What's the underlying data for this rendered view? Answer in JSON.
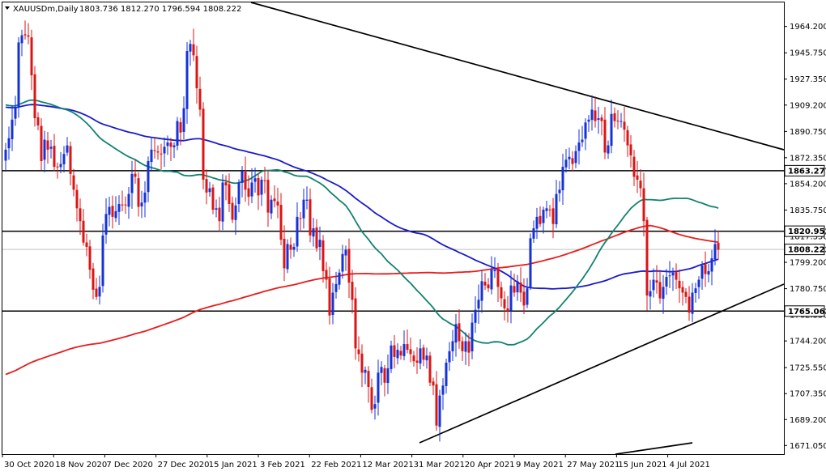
{
  "header": {
    "symbol_label": "XAUUSDm,Daily",
    "ohlc_text": "1803.736 1812.270 1796.594 1808.222",
    "open": 1803.736,
    "high": 1812.27,
    "low": 1796.594,
    "close": 1808.222
  },
  "chart_data": {
    "type": "candlestick",
    "symbol": "XAUUSDm",
    "timeframe": "Daily",
    "y_range": [
      1665,
      1981
    ],
    "y_ticks": [
      "1964.200",
      "1945.750",
      "1927.350",
      "1909.200",
      "1890.750",
      "1872.350",
      "1854.200",
      "1835.750",
      "1817.350",
      "1799.200",
      "1780.750",
      "1762.350",
      "1744.200",
      "1725.550",
      "1707.350",
      "1689.200",
      "1671.050"
    ],
    "x_ticks": [
      "30 Oct 2020",
      "18 Nov 2020",
      "7 Dec 2020",
      "27 Dec 2020",
      "15 Jan 2021",
      "3 Feb 2021",
      "22 Feb 2021",
      "12 Mar 2021",
      "31 Mar 2021",
      "20 Apr 2021",
      "9 May 2021",
      "27 May 2021",
      "15 Jun 2021",
      "4 Jul 2021"
    ],
    "horizontal_levels": [
      {
        "value": 1863.277,
        "label": "1863.277"
      },
      {
        "value": 1820.952,
        "label": "1820.952"
      },
      {
        "value": 1765.062,
        "label": "1765.062"
      }
    ],
    "current_price": {
      "value": 1808.222,
      "label": "1808.222"
    },
    "closes": [
      1878,
      1886,
      1899,
      1907,
      1953,
      1958,
      1958,
      1957,
      1930,
      1900,
      1895,
      1870,
      1885,
      1878,
      1880,
      1866,
      1866,
      1868,
      1875,
      1881,
      1861,
      1850,
      1837,
      1828,
      1813,
      1810,
      1794,
      1780,
      1775,
      1782,
      1818,
      1833,
      1838,
      1831,
      1835,
      1840,
      1839,
      1839,
      1847,
      1861,
      1859,
      1838,
      1841,
      1848,
      1870,
      1878,
      1877,
      1876,
      1875,
      1880,
      1883,
      1880,
      1881,
      1898,
      1890,
      1907,
      1947,
      1952,
      1944,
      1921,
      1906,
      1857,
      1848,
      1851,
      1836,
      1837,
      1828,
      1855,
      1853,
      1840,
      1829,
      1839,
      1855,
      1863,
      1850,
      1845,
      1855,
      1858,
      1846,
      1857,
      1856,
      1834,
      1843,
      1842,
      1839,
      1815,
      1795,
      1812,
      1808,
      1810,
      1831,
      1830,
      1843,
      1843,
      1818,
      1823,
      1809,
      1815,
      1793,
      1787,
      1762,
      1778,
      1784,
      1792,
      1805,
      1808,
      1785,
      1773,
      1739,
      1735,
      1722,
      1724,
      1712,
      1696,
      1700,
      1722,
      1726,
      1715,
      1725,
      1741,
      1733,
      1738,
      1734,
      1742,
      1738,
      1735,
      1730,
      1729,
      1739,
      1731,
      1734,
      1715,
      1713,
      1685,
      1706,
      1713,
      1729,
      1737,
      1744,
      1756,
      1744,
      1737,
      1744,
      1736,
      1757,
      1766,
      1773,
      1786,
      1783,
      1781,
      1794,
      1794,
      1782,
      1774,
      1767,
      1765,
      1783,
      1778,
      1786,
      1778,
      1769,
      1781,
      1816,
      1823,
      1831,
      1826,
      1836,
      1837,
      1836,
      1826,
      1847,
      1850,
      1866,
      1871,
      1873,
      1868,
      1877,
      1883,
      1885,
      1897,
      1899,
      1906,
      1898,
      1900,
      1898,
      1876,
      1881,
      1903,
      1898,
      1898,
      1898,
      1892,
      1881,
      1874,
      1859,
      1857,
      1851,
      1828,
      1776,
      1779,
      1787,
      1785,
      1774,
      1782,
      1789,
      1790,
      1792,
      1787,
      1781,
      1778,
      1775,
      1764,
      1778,
      1781,
      1787,
      1797,
      1791,
      1793,
      1802,
      1812,
      1808
    ]
  }
}
